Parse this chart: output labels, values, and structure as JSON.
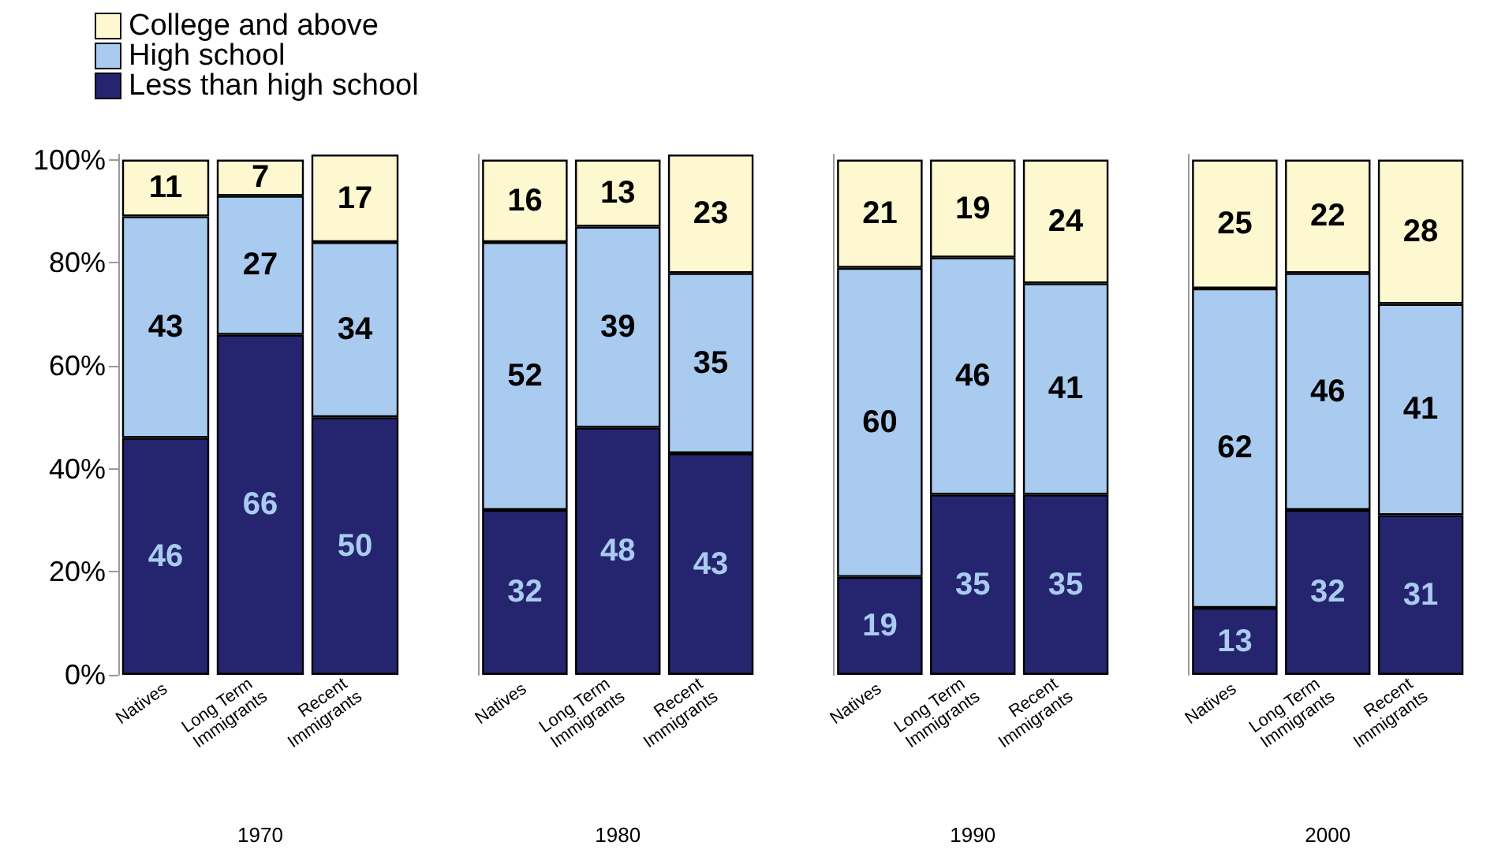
{
  "chart_data": [
    {
      "type": "bar",
      "stacked": true,
      "xlabel": "1970",
      "categories": [
        "Natives",
        "Long Term Immigrants",
        "Recent Immigrants"
      ],
      "ylim": [
        0,
        101
      ],
      "yticks": [
        {
          "value": 0,
          "label": "0%"
        },
        {
          "value": 20,
          "label": "20%"
        },
        {
          "value": 40,
          "label": "40%"
        },
        {
          "value": 60,
          "label": "60%"
        },
        {
          "value": 80,
          "label": "80%"
        },
        {
          "value": 100,
          "label": "100%"
        }
      ],
      "data_labels": true,
      "legend": "top",
      "grid": false,
      "series": [
        {
          "name": "Less than high school",
          "color": "#25256f",
          "values": [
            46,
            66,
            50
          ]
        },
        {
          "name": "High school",
          "color": "#a9cbef",
          "values": [
            43,
            27,
            34
          ]
        },
        {
          "name": "College and above",
          "color": "#fdf8cf",
          "values": [
            11,
            7,
            17
          ]
        }
      ]
    },
    {
      "type": "bar",
      "stacked": true,
      "xlabel": "1980",
      "categories": [
        "Natives",
        "Long Term Immigrants",
        "Recent Immigrants"
      ],
      "ylim": [
        0,
        101
      ],
      "tick_labels": "x",
      "data_labels": true,
      "grid": false,
      "series": [
        {
          "color": "#25256f",
          "values": [
            32,
            48,
            43
          ]
        },
        {
          "color": "#a9cbef",
          "values": [
            52,
            39,
            35
          ]
        },
        {
          "color": "#fdf8cf",
          "values": [
            16,
            13,
            23
          ]
        }
      ]
    },
    {
      "type": "bar",
      "stacked": true,
      "xlabel": "1990",
      "categories": [
        "Natives",
        "Long Term Immigrants",
        "Recent Immigrants"
      ],
      "ylim": [
        0,
        101
      ],
      "tick_labels": "x",
      "data_labels": true,
      "grid": false,
      "series": [
        {
          "color": "#25256f",
          "values": [
            19,
            35,
            35
          ]
        },
        {
          "color": "#a9cbef",
          "values": [
            60,
            46,
            41
          ]
        },
        {
          "color": "#fdf8cf",
          "values": [
            21,
            19,
            24
          ]
        }
      ]
    },
    {
      "type": "bar",
      "stacked": true,
      "xlabel": "2000",
      "categories": [
        "Natives",
        "Long Term Immigrants",
        "Recent Immigrants"
      ],
      "ylim": [
        0,
        101
      ],
      "tick_labels": "x",
      "data_labels": true,
      "grid": false,
      "series": [
        {
          "color": "#25256f",
          "values": [
            13,
            32,
            31
          ]
        },
        {
          "color": "#a9cbef",
          "values": [
            62,
            46,
            41
          ]
        },
        {
          "color": "#fdf8cf",
          "values": [
            25,
            22,
            28
          ]
        }
      ]
    }
  ]
}
